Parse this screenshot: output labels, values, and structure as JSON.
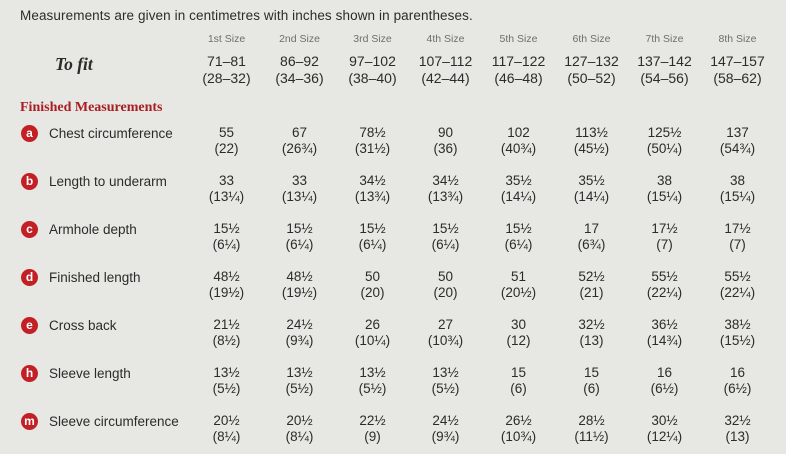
{
  "page": {
    "title": "Measurements are given in centimetres with inches shown in parentheses.",
    "to_fit_label": "To fit",
    "section_heading": "Finished Measurements"
  },
  "colors": {
    "bg": "#e7e7e3",
    "badge": "#c32026",
    "heading": "#a81e23",
    "text": "#2b2b29",
    "muted": "#6e6e6a"
  },
  "table": {
    "size_headers": [
      "1st Size",
      "2nd Size",
      "3rd Size",
      "4th Size",
      "5th Size",
      "6th Size",
      "7th Size",
      "8th Size"
    ],
    "to_fit": {
      "cm": [
        "71–81",
        "86–92",
        "97–102",
        "107–112",
        "117–122",
        "127–132",
        "137–142",
        "147–157"
      ],
      "inches": [
        "(28–32)",
        "(34–36)",
        "(38–40)",
        "(42–44)",
        "(46–48)",
        "(50–52)",
        "(54–56)",
        "(58–62)"
      ]
    },
    "rows": [
      {
        "key": "a",
        "label": "Chest circumference",
        "cm": [
          "55",
          "67",
          "78½",
          "90",
          "102",
          "113½",
          "125½",
          "137"
        ],
        "inches": [
          "(22)",
          "(26¾)",
          "(31½)",
          "(36)",
          "(40¾)",
          "(45½)",
          "(50¼)",
          "(54¾)"
        ]
      },
      {
        "key": "b",
        "label": "Length to underarm",
        "cm": [
          "33",
          "33",
          "34½",
          "34½",
          "35½",
          "35½",
          "38",
          "38"
        ],
        "inches": [
          "(13¼)",
          "(13¼)",
          "(13¾)",
          "(13¾)",
          "(14¼)",
          "(14¼)",
          "(15¼)",
          "(15¼)"
        ]
      },
      {
        "key": "c",
        "label": "Armhole depth",
        "cm": [
          "15½",
          "15½",
          "15½",
          "15½",
          "15½",
          "17",
          "17½",
          "17½"
        ],
        "inches": [
          "(6¼)",
          "(6¼)",
          "(6¼)",
          "(6¼)",
          "(6¼)",
          "(6¾)",
          "(7)",
          "(7)"
        ]
      },
      {
        "key": "d",
        "label": "Finished length",
        "cm": [
          "48½",
          "48½",
          "50",
          "50",
          "51",
          "52½",
          "55½",
          "55½"
        ],
        "inches": [
          "(19½)",
          "(19½)",
          "(20)",
          "(20)",
          "(20½)",
          "(21)",
          "(22¼)",
          "(22¼)"
        ]
      },
      {
        "key": "e",
        "label": "Cross back",
        "cm": [
          "21½",
          "24½",
          "26",
          "27",
          "30",
          "32½",
          "36½",
          "38½"
        ],
        "inches": [
          "(8½)",
          "(9¾)",
          "(10¼)",
          "(10¾)",
          "(12)",
          "(13)",
          "(14¾)",
          "(15½)"
        ]
      },
      {
        "key": "h",
        "label": "Sleeve length",
        "cm": [
          "13½",
          "13½",
          "13½",
          "13½",
          "15",
          "15",
          "16",
          "16"
        ],
        "inches": [
          "(5½)",
          "(5½)",
          "(5½)",
          "(5½)",
          "(6)",
          "(6)",
          "(6½)",
          "(6½)"
        ]
      },
      {
        "key": "m",
        "label": "Sleeve circumference",
        "cm": [
          "20½",
          "20½",
          "22½",
          "24½",
          "26½",
          "28½",
          "30½",
          "32½"
        ],
        "inches": [
          "(8¼)",
          "(8¼)",
          "(9)",
          "(9¾)",
          "(10¾)",
          "(11½)",
          "(12¼)",
          "(13)"
        ]
      }
    ]
  }
}
